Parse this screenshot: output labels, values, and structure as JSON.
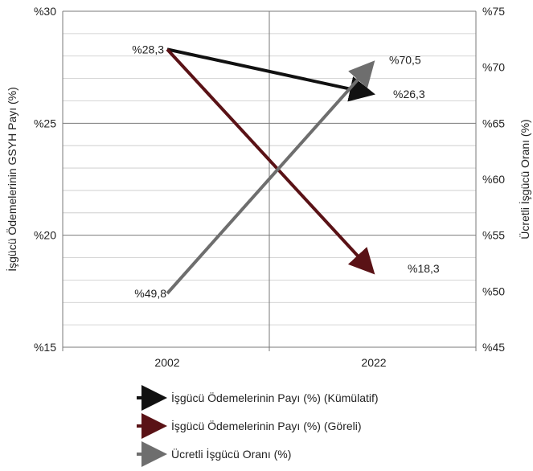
{
  "chart_data": {
    "type": "line",
    "categories": [
      "2002",
      "2022"
    ],
    "y_left": {
      "label": "İşgücü Ödemelerinin GSYH Payı (%)",
      "range": [
        15,
        30
      ],
      "ticks": [
        "%15",
        "%20",
        "%25",
        "%30"
      ],
      "tick_values": [
        15,
        20,
        25,
        30
      ]
    },
    "y_right": {
      "label": "Ücretli İşgücü Oranı (%)",
      "range": [
        45,
        75
      ],
      "ticks": [
        "%45",
        "%50",
        "%55",
        "%60",
        "%65",
        "%70",
        "%75"
      ],
      "tick_values": [
        45,
        50,
        55,
        60,
        65,
        70,
        75
      ]
    },
    "series": [
      {
        "name": "İşgücü Ödemelerinin Payı (%) (Kümülatif)",
        "axis": "left",
        "color": "#111111",
        "values": [
          28.3,
          26.3
        ],
        "labels": [
          "%28,3",
          "%26,3"
        ]
      },
      {
        "name": "İşgücü Ödemelerinin Payı (%) (Göreli)",
        "axis": "left",
        "color": "#5a1216",
        "values": [
          28.3,
          18.3
        ],
        "labels": [
          "",
          "%18,3"
        ]
      },
      {
        "name": "Ücretli İşgücü Oranı (%)",
        "axis": "right",
        "color": "#6e6e6e",
        "values": [
          49.8,
          70.5
        ],
        "labels": [
          "%49,8",
          "%70,5"
        ]
      }
    ],
    "grid": true,
    "legend_position": "bottom"
  }
}
